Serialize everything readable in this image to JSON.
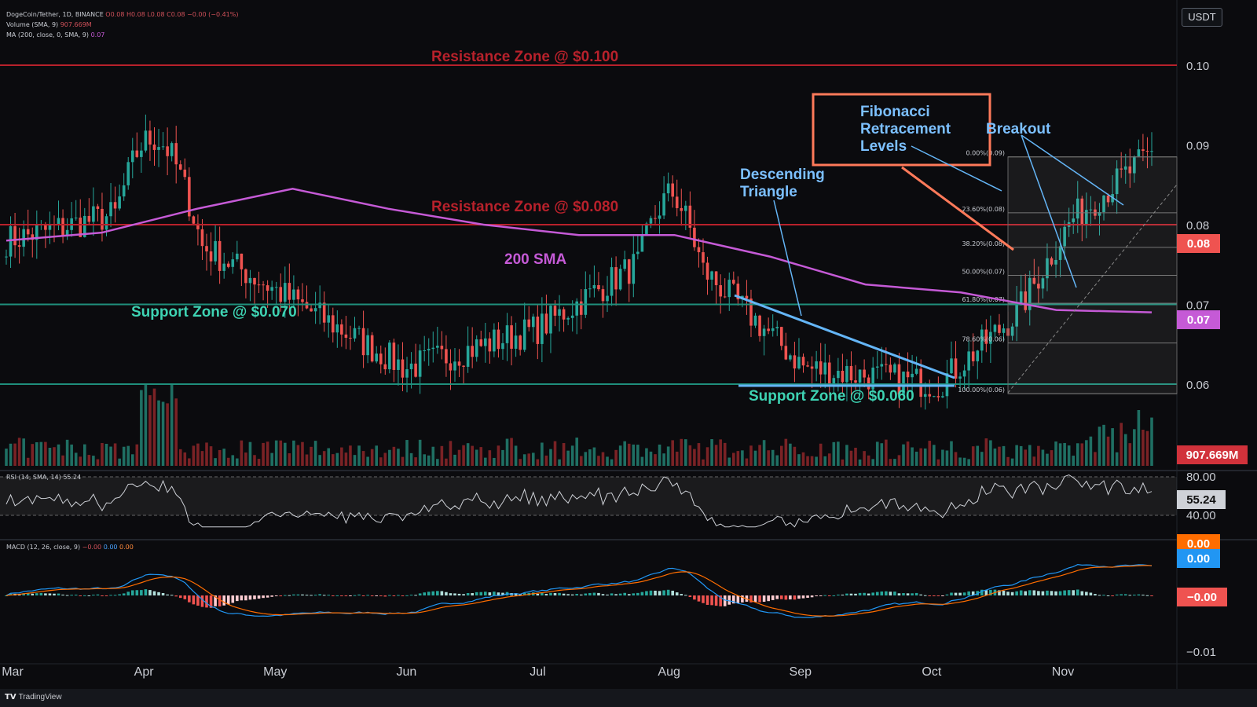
{
  "header": {
    "symbol_line": "DogeCoin/Tether, 1D, BINANCE",
    "ohlc": "O0.08 H0.08 L0.08 C0.08 −0.00 (−0.41%)",
    "volume_line": "Volume (SMA, 9)",
    "volume_value": "907.669M",
    "ma_line": "MA (200, close, 0, SMA, 9)",
    "ma_value": "0.07",
    "currency": "USDT"
  },
  "price_axis": {
    "labels": [
      "0.10",
      "0.09",
      "0.08",
      "0.07",
      "0.06"
    ],
    "badges": {
      "last_price": "0.08",
      "sma": "0.07",
      "volume": "907.669M"
    }
  },
  "time_axis": [
    "Mar",
    "Apr",
    "May",
    "Jun",
    "Jul",
    "Aug",
    "Sep",
    "Oct",
    "Nov"
  ],
  "annotations": {
    "resistance_100": "Resistance Zone @ $0.100",
    "resistance_080": "Resistance Zone @ $0.080",
    "support_070": "Support Zone @ $0.070",
    "support_060": "Support Zone @ $0.060",
    "sma_label": "200 SMA",
    "triangle_1": "Descending",
    "triangle_2": "Triangle",
    "fib_1": "Fibonacci",
    "fib_2": "Retracement",
    "fib_3": "Levels",
    "breakout": "Breakout"
  },
  "fib_levels": [
    {
      "label": "0.00%(0.09)",
      "ratio": 0
    },
    {
      "label": "23.60%(0.08)",
      "ratio": 0.236
    },
    {
      "label": "38.20%(0.08)",
      "ratio": 0.382
    },
    {
      "label": "50.00%(0.07)",
      "ratio": 0.5
    },
    {
      "label": "61.80%(0.07)",
      "ratio": 0.618
    },
    {
      "label": "78.60%(0.06)",
      "ratio": 0.786
    },
    {
      "label": "100.00%(0.06)",
      "ratio": 1
    }
  ],
  "rsi": {
    "header": "RSI (14, SMA, 14)",
    "value": "55.24",
    "axis": [
      "80.00",
      "40.00"
    ]
  },
  "macd": {
    "header": "MACD (12, 26, close, 9)",
    "values": [
      "−0.00",
      "0.00",
      "0.00"
    ],
    "axis_bottom": "−0.01",
    "badges": [
      "0.00",
      "0.00",
      "−0.00"
    ]
  },
  "footer": {
    "brand": "TradingView"
  },
  "colors": {
    "background": "#0b0b0e",
    "up": "#26a69a",
    "down": "#ef5350",
    "sma": "#c55ad6",
    "resistance": "#b8212b",
    "support": "#1f8f7c",
    "fib_box": "#ff7a5a",
    "triangle": "#64b5f6",
    "macd_line": "#2196f3",
    "signal_line": "#ff6d00"
  },
  "chart_data": {
    "type": "candlestick",
    "title": "DogeCoin/Tether, 1D, BINANCE",
    "x_range": [
      "Mar",
      "Nov"
    ],
    "ylim": [
      0.055,
      0.105
    ],
    "approx_closes_by_month": [
      {
        "month": "Mar",
        "close": 0.078
      },
      {
        "month": "Apr",
        "close": 0.082
      },
      {
        "month": "May",
        "close": 0.072
      },
      {
        "month": "Jun",
        "close": 0.062
      },
      {
        "month": "Jul",
        "close": 0.067
      },
      {
        "month": "Aug",
        "close": 0.078
      },
      {
        "month": "Sep",
        "close": 0.062
      },
      {
        "month": "Oct",
        "close": 0.06
      },
      {
        "month": "Nov",
        "close": 0.075
      }
    ],
    "horizontal_levels": [
      {
        "label": "Resistance Zone @ $0.100",
        "value": 0.1
      },
      {
        "label": "Resistance Zone @ $0.080",
        "value": 0.08
      },
      {
        "label": "Support Zone @ $0.070",
        "value": 0.07
      },
      {
        "label": "Support Zone @ $0.060",
        "value": 0.06
      }
    ],
    "sma_200": [
      0.078,
      0.079,
      0.082,
      0.0845,
      0.082,
      0.08,
      0.0787,
      0.0787,
      0.076,
      0.0725,
      0.0715,
      0.0693,
      0.069
    ]
  }
}
